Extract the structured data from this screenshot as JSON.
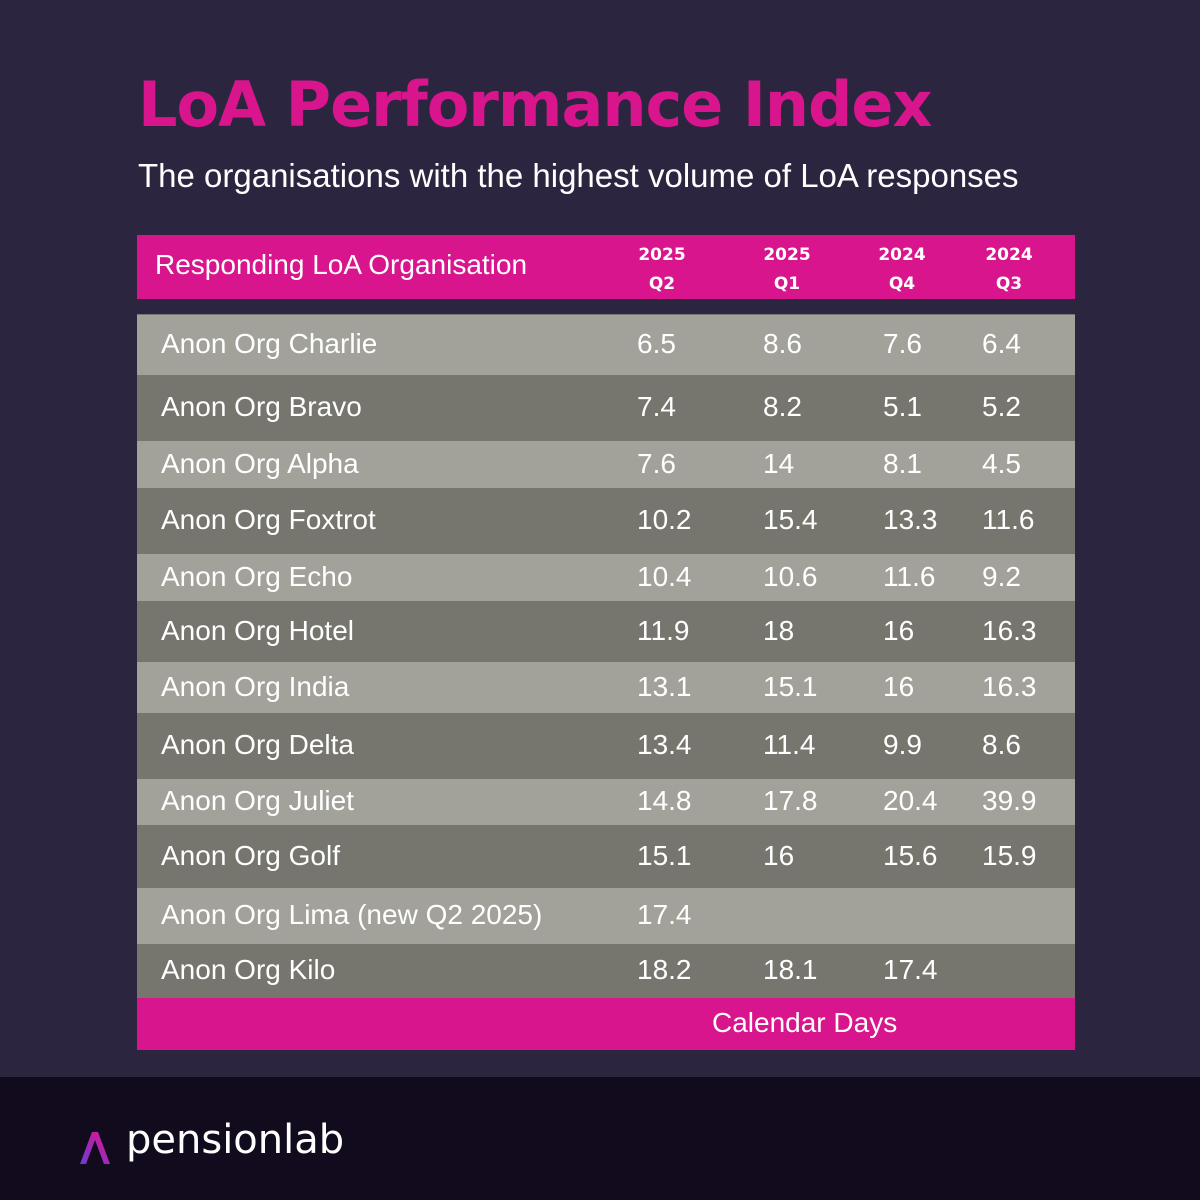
{
  "header": {
    "title": "LoA Performance Index",
    "subtitle": "The organisations with the highest volume of LoA responses"
  },
  "table": {
    "label_column": "Responding LoA Organisation",
    "footer": "Calendar Days"
  },
  "brand": {
    "name": "pensionlab",
    "logo_icon": "pensionlab-logo-icon",
    "colors": {
      "accent": "#d9158e",
      "background": "#2c2540",
      "band": "#120b1d",
      "row_light": "#a2a29a",
      "row_dark": "#76766e"
    }
  },
  "chart_data": {
    "type": "table",
    "title": "LoA Performance Index",
    "subtitle": "The organisations with the highest volume of LoA responses",
    "unit": "Calendar Days",
    "columns": [
      {
        "year": "2025",
        "quarter": "Q2"
      },
      {
        "year": "2025",
        "quarter": "Q1"
      },
      {
        "year": "2024",
        "quarter": "Q4"
      },
      {
        "year": "2024",
        "quarter": "Q3"
      }
    ],
    "rows": [
      {
        "org": "Anon Org Charlie",
        "values": [
          "6.5",
          "8.6",
          "7.6",
          "6.4"
        ]
      },
      {
        "org": "Anon Org Bravo",
        "values": [
          "7.4",
          "8.2",
          "5.1",
          "5.2"
        ]
      },
      {
        "org": "Anon Org Alpha",
        "values": [
          "7.6",
          "14",
          "8.1",
          "4.5"
        ]
      },
      {
        "org": "Anon Org Foxtrot",
        "values": [
          "10.2",
          "15.4",
          "13.3",
          "11.6"
        ]
      },
      {
        "org": "Anon Org Echo",
        "values": [
          "10.4",
          "10.6",
          "11.6",
          "9.2"
        ]
      },
      {
        "org": "Anon Org Hotel",
        "values": [
          "11.9",
          "18",
          "16",
          "16.3"
        ]
      },
      {
        "org": "Anon Org India",
        "values": [
          "13.1",
          "15.1",
          "16",
          "16.3"
        ]
      },
      {
        "org": "Anon Org Delta",
        "values": [
          "13.4",
          "11.4",
          "9.9",
          "8.6"
        ]
      },
      {
        "org": "Anon Org Juliet",
        "values": [
          "14.8",
          "17.8",
          "20.4",
          "39.9"
        ]
      },
      {
        "org": "Anon Org Golf",
        "values": [
          "15.1",
          "16",
          "15.6",
          "15.9"
        ]
      },
      {
        "org": "Anon Org Lima (new Q2 2025)",
        "values": [
          "17.4",
          "",
          "",
          ""
        ]
      },
      {
        "org": "Anon Org Kilo",
        "values": [
          "18.2",
          "18.1",
          "17.4",
          ""
        ]
      }
    ]
  }
}
